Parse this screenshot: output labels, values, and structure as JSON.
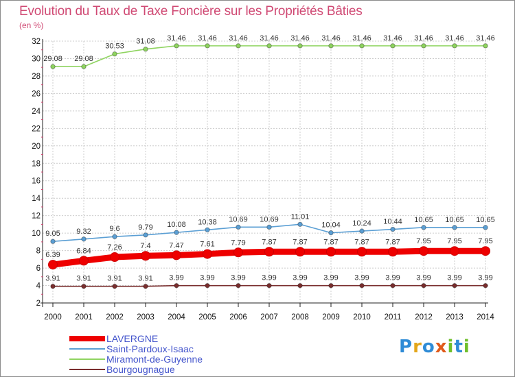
{
  "header": {
    "title": "Evolution du Taux de Taxe Foncière sur les Propriétés Bâties",
    "unit": "(en %)"
  },
  "logo": {
    "text": "Proxiti",
    "letters": [
      "P",
      "r",
      "o",
      "x",
      "i",
      "t",
      "i"
    ],
    "colors": [
      "#2e8bd6",
      "#e3a61a",
      "#2e8bd6",
      "#e05a1a",
      "#6fbf2a",
      "#2e8bd6",
      "#6fbf2a"
    ]
  },
  "chart_data": {
    "type": "line",
    "title": "Evolution du Taux de Taxe Foncière sur les Propriétés Bâties",
    "ylabel": "(en %)",
    "xlabel": "",
    "ylim": [
      2,
      32
    ],
    "yticks": [
      "2",
      "4",
      "6",
      "8",
      "10",
      "12",
      "14",
      "16",
      "18",
      "20",
      "22",
      "24",
      "26",
      "28",
      "30",
      "32"
    ],
    "ytick_values": [
      2,
      4,
      6,
      8,
      10,
      12,
      14,
      16,
      18,
      20,
      22,
      24,
      26,
      28,
      30,
      32
    ],
    "categories": [
      "2000",
      "2001",
      "2002",
      "2003",
      "2004",
      "2005",
      "2006",
      "2007",
      "2008",
      "2009",
      "2010",
      "2011",
      "2012",
      "2013",
      "2014"
    ],
    "grid": true,
    "legend_position": "bottom-left",
    "series": [
      {
        "name": "LAVERGNE",
        "color": "#ee0000",
        "style": "thick",
        "values": [
          6.39,
          6.84,
          7.26,
          7.4,
          7.47,
          7.61,
          7.79,
          7.87,
          7.87,
          7.87,
          7.87,
          7.87,
          7.95,
          7.95,
          7.95
        ],
        "labels": [
          "6.39",
          "6.84",
          "7.26",
          "7.4",
          "7.47",
          "7.61",
          "7.79",
          "7.87",
          "7.87",
          "7.87",
          "7.87",
          "7.87",
          "7.95",
          "7.95",
          "7.95"
        ]
      },
      {
        "name": "Saint-Pardoux-Isaac",
        "color": "#5b9fd4",
        "style": "thin",
        "values": [
          9.05,
          9.32,
          9.6,
          9.79,
          10.08,
          10.38,
          10.69,
          10.69,
          11.01,
          10.04,
          10.24,
          10.44,
          10.65,
          10.65,
          10.65
        ],
        "labels": [
          "9.05",
          "9.32",
          "9.6",
          "9.79",
          "10.08",
          "10.38",
          "10.69",
          "10.69",
          "11.01",
          "10.04",
          "10.24",
          "10.44",
          "10.65",
          "10.65",
          "10.65"
        ]
      },
      {
        "name": "Miramont-de-Guyenne",
        "color": "#8fd460",
        "style": "thin",
        "values": [
          29.08,
          29.08,
          30.53,
          31.08,
          31.46,
          31.46,
          31.46,
          31.46,
          31.46,
          31.46,
          31.46,
          31.46,
          31.46,
          31.46,
          31.46
        ],
        "labels": [
          "29.08",
          "29.08",
          "30.53",
          "31.08",
          "31.46",
          "31.46",
          "31.46",
          "31.46",
          "31.46",
          "31.46",
          "31.46",
          "31.46",
          "31.46",
          "31.46",
          "31.46"
        ]
      },
      {
        "name": "Bourgougnague",
        "color": "#7a2e2e",
        "style": "thin",
        "values": [
          3.91,
          3.91,
          3.91,
          3.91,
          3.99,
          3.99,
          3.99,
          3.99,
          3.99,
          3.99,
          3.99,
          3.99,
          3.99,
          3.99,
          3.99
        ],
        "labels": [
          "3.91",
          "3.91",
          "3.91",
          "3.91",
          "3.99",
          "3.99",
          "3.99",
          "3.99",
          "3.99",
          "3.99",
          "3.99",
          "3.99",
          "3.99",
          "3.99",
          "3.99"
        ]
      }
    ]
  }
}
